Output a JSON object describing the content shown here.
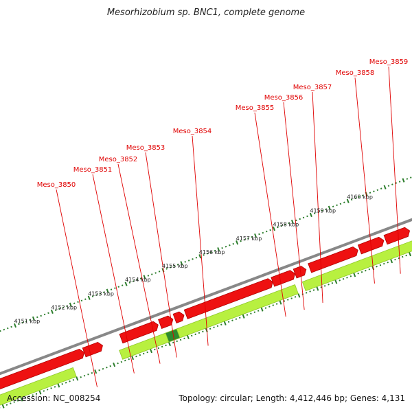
{
  "title": "Mesorhizobium sp. BNC1, complete genome",
  "footer": {
    "accession": "Accession: NC_008254",
    "summary": "Topology: circular; Length: 4,412,446 bp; Genes: 4,131"
  },
  "colors": {
    "forward_gene": "#b8f040",
    "reverse_gene": "#ee1111",
    "highlight_gene": "#2d8a2d",
    "backbone": "#888888",
    "tick": "#2b7d2b",
    "label": "#e00000"
  },
  "genes": [
    {
      "name": "Meso_3850",
      "strand": "reverse",
      "start_kbp": 4152.4,
      "end_kbp": 4152.9
    },
    {
      "name": "Meso_3851",
      "strand": "reverse",
      "start_kbp": 4153.4,
      "end_kbp": 4154.4
    },
    {
      "name": "Meso_3852",
      "strand": "reverse",
      "start_kbp": 4154.45,
      "end_kbp": 4154.8
    },
    {
      "name": "Meso_3853",
      "strand": "reverse",
      "start_kbp": 4154.85,
      "end_kbp": 4155.1
    },
    {
      "name": "Meso_3853",
      "strand": "forward",
      "start_kbp": 4154.5,
      "end_kbp": 4154.8,
      "highlight": true
    },
    {
      "name": "Meso_3854",
      "strand": "reverse",
      "start_kbp": 4155.15,
      "end_kbp": 4157.5
    },
    {
      "name": "Meso_3855",
      "strand": "reverse",
      "start_kbp": 4157.5,
      "end_kbp": 4158.1
    },
    {
      "name": "Meso_3856",
      "strand": "reverse",
      "start_kbp": 4158.1,
      "end_kbp": 4158.4
    },
    {
      "name": "Meso_3857",
      "strand": "reverse",
      "start_kbp": 4158.5,
      "end_kbp": 4159.8
    },
    {
      "name": "Meso_3858",
      "strand": "reverse",
      "start_kbp": 4159.85,
      "end_kbp": 4160.5
    },
    {
      "name": "Meso_3859",
      "strand": "reverse",
      "start_kbp": 4160.55,
      "end_kbp": 4161.2
    },
    {
      "name": "forward-block-1",
      "strand": "forward",
      "start_kbp": 4148.5,
      "end_kbp": 4152.0
    },
    {
      "name": "forward-block-2",
      "strand": "forward",
      "start_kbp": 4153.25,
      "end_kbp": 4158.0
    },
    {
      "name": "forward-block-3",
      "strand": "forward",
      "start_kbp": 4158.2,
      "end_kbp": 4162.5
    },
    {
      "name": "reverse-block-left",
      "strand": "reverse",
      "start_kbp": 4148.5,
      "end_kbp": 4152.4
    }
  ],
  "labels": [
    {
      "text": "Meso_3850",
      "kbp": 4152.4
    },
    {
      "text": "Meso_3851",
      "kbp": 4153.4
    },
    {
      "text": "Meso_3852",
      "kbp": 4154.1
    },
    {
      "text": "Meso_3853",
      "kbp": 4154.55
    },
    {
      "text": "Meso_3854",
      "kbp": 4155.4
    },
    {
      "text": "Meso_3855",
      "kbp": 4157.5
    },
    {
      "text": "Meso_3856",
      "kbp": 4158.0
    },
    {
      "text": "Meso_3857",
      "kbp": 4158.5
    },
    {
      "text": "Meso_3858",
      "kbp": 4159.9
    },
    {
      "text": "Meso_3859",
      "kbp": 4160.6
    }
  ],
  "kbp_ticks": [
    "4151 kbp",
    "4152 kbp",
    "4153 kbp",
    "4154 kbp",
    "4155 kbp",
    "4156 kbp",
    "4157 kbp",
    "4158 kbp",
    "4159 kbp",
    "4160 kbp"
  ]
}
